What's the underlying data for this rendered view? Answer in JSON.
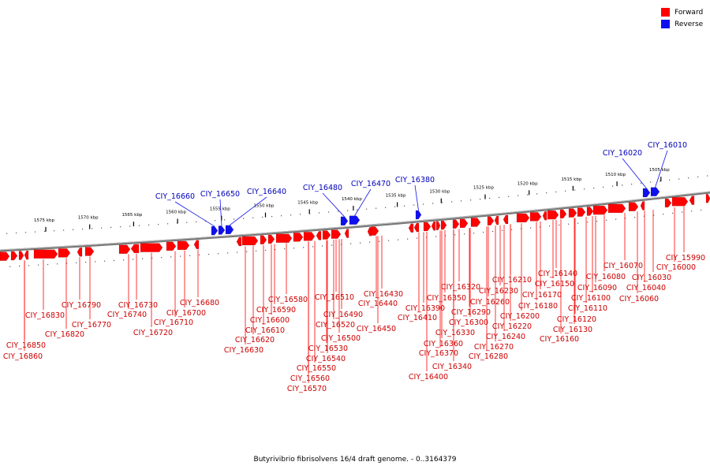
{
  "caption": "Butyrivibrio fibrisolvens 16/4 draft genome. - 0..3164379",
  "legend": [
    {
      "label": "Forward",
      "color": "#ff0000"
    },
    {
      "label": "Reverse",
      "color": "#1010ee"
    }
  ],
  "colors": {
    "forward": "#ff0000",
    "reverse": "#1010ee",
    "forward_label": "#cc0000",
    "reverse_label": "#0000bb",
    "backbone": "#777777"
  },
  "scale_ticks": [
    "1575 kbp",
    "1570 kbp",
    "1565 kbp",
    "1560 kbp",
    "1555 kbp",
    "1550 kbp",
    "1545 kbp",
    "1540 kbp",
    "1535 kbp",
    "1530 kbp",
    "1525 kbp",
    "1520 kbp",
    "1515 kbp",
    "1510 kbp",
    "1505 kbp"
  ],
  "reverse_labels": [
    "CIY_16660",
    "CIY_16650",
    "CIY_16640",
    "CIY_16480",
    "CIY_16470",
    "CIY_16380",
    "CIY_16020",
    "CIY_16010"
  ],
  "forward_labels": [
    "CIY_16860",
    "CIY_16850",
    "CIY_16830",
    "CIY_16820",
    "CIY_16790",
    "CIY_16770",
    "CIY_16740",
    "CIY_16730",
    "CIY_16720",
    "CIY_16710",
    "CIY_16700",
    "CIY_16680",
    "CIY_16630",
    "CIY_16620",
    "CIY_16610",
    "CIY_16600",
    "CIY_16590",
    "CIY_16580",
    "CIY_16570",
    "CIY_16560",
    "CIY_16550",
    "CIY_16540",
    "CIY_16530",
    "CIY_16520",
    "CIY_16510",
    "CIY_16500",
    "CIY_16490",
    "CIY_16450",
    "CIY_16440",
    "CIY_16430",
    "CIY_16410",
    "CIY_16400",
    "CIY_16390",
    "CIY_16370",
    "CIY_16360",
    "CIY_16350",
    "CIY_16340",
    "CIY_16330",
    "CIY_16320",
    "CIY_16300",
    "CIY_16290",
    "CIY_16280",
    "CIY_16270",
    "CIY_16260",
    "CIY_16240",
    "CIY_16230",
    "CIY_16220",
    "CIY_16210",
    "CIY_16200",
    "CIY_16180",
    "CIY_16170",
    "CIY_16160",
    "CIY_16150",
    "CIY_16140",
    "CIY_16130",
    "CIY_16120",
    "CIY_16110",
    "CIY_16100",
    "CIY_16090",
    "CIY_16080",
    "CIY_16070",
    "CIY_16060",
    "CIY_16040",
    "CIY_16030",
    "CIY_16000",
    "CIY_15990"
  ]
}
